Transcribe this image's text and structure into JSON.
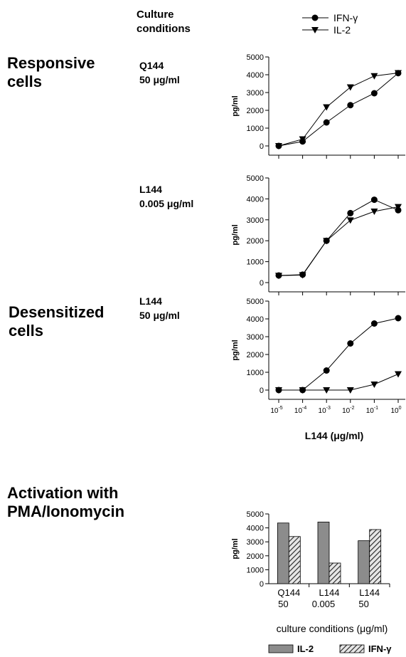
{
  "header": {
    "culture_conditions": [
      "Culture",
      "conditions"
    ]
  },
  "legend_top": {
    "circle": "IFN-γ",
    "triangle": "IL-2"
  },
  "sections": {
    "responsive": [
      "Responsive",
      "cells"
    ],
    "desensitized": [
      "Desensitized",
      "cells"
    ],
    "activation": [
      "Activation with",
      "PMA/Ionomycin"
    ]
  },
  "conditions": {
    "p1": [
      "Q144",
      "50 μg/ml"
    ],
    "p2": [
      "L144",
      "0.005 μg/ml"
    ],
    "p3": [
      "L144",
      "50 μg/ml"
    ]
  },
  "line_x_ticks": [
    "10-5",
    "10-4",
    "10-3",
    "10-2",
    "10-1",
    "100"
  ],
  "line_x_label": "L144  (μg/ml)",
  "bar_x_label": "culture conditions (μg/ml)",
  "bar_legend": {
    "il2": "IL-2",
    "ifn": "IFN-γ"
  },
  "chart_data": [
    {
      "type": "line",
      "panel": "Q144 50 μg/ml",
      "x": [
        1e-05,
        0.0001,
        0.001,
        0.01,
        0.1,
        1
      ],
      "x_scale": "log",
      "ylabel": "pg/ml",
      "ylim": [
        0,
        5000
      ],
      "yticks": [
        0,
        1000,
        2000,
        3000,
        4000,
        5000
      ],
      "series": [
        {
          "name": "IFN-γ",
          "marker": "circle",
          "values": [
            0,
            250,
            1320,
            2290,
            2960,
            4090
          ]
        },
        {
          "name": "IL-2",
          "marker": "triangle",
          "values": [
            0,
            380,
            2180,
            3300,
            3930,
            4100
          ]
        }
      ]
    },
    {
      "type": "line",
      "panel": "L144 0.005 μg/ml",
      "x": [
        1e-05,
        0.0001,
        0.001,
        0.01,
        0.1,
        1
      ],
      "x_scale": "log",
      "ylabel": "pg/ml",
      "ylim": [
        0,
        5000
      ],
      "yticks": [
        0,
        1000,
        2000,
        3000,
        4000,
        5000
      ],
      "series": [
        {
          "name": "IFN-γ",
          "marker": "circle",
          "values": [
            340,
            380,
            2000,
            3320,
            3960,
            3460
          ]
        },
        {
          "name": "IL-2",
          "marker": "triangle",
          "values": [
            330,
            360,
            2000,
            2980,
            3400,
            3620
          ]
        }
      ]
    },
    {
      "type": "line",
      "panel": "L144 50 μg/ml",
      "x": [
        1e-05,
        0.0001,
        0.001,
        0.01,
        0.1,
        1
      ],
      "x_scale": "log",
      "xlabel": "L144  (μg/ml)",
      "ylabel": "pg/ml",
      "ylim": [
        0,
        5000
      ],
      "yticks": [
        0,
        1000,
        2000,
        3000,
        4000,
        5000
      ],
      "series": [
        {
          "name": "IFN-γ",
          "marker": "circle",
          "values": [
            0,
            0,
            1100,
            2620,
            3740,
            4040
          ]
        },
        {
          "name": "IL-2",
          "marker": "triangle",
          "values": [
            0,
            0,
            0,
            0,
            320,
            900
          ]
        }
      ]
    },
    {
      "type": "bar",
      "categories": [
        [
          "Q144",
          "50"
        ],
        [
          "L144",
          "0.005"
        ],
        [
          "L144",
          "50"
        ]
      ],
      "xlabel": "culture conditions (μg/ml)",
      "ylabel": "pg/ml",
      "ylim": [
        0,
        5000
      ],
      "yticks": [
        0,
        1000,
        2000,
        3000,
        4000,
        5000
      ],
      "legend": "bottom",
      "series": [
        {
          "name": "IL-2",
          "fill": "solid-gray",
          "values": [
            4350,
            4420,
            3080
          ]
        },
        {
          "name": "IFN-γ",
          "fill": "hatched",
          "values": [
            3380,
            1480,
            3880
          ]
        }
      ]
    }
  ]
}
